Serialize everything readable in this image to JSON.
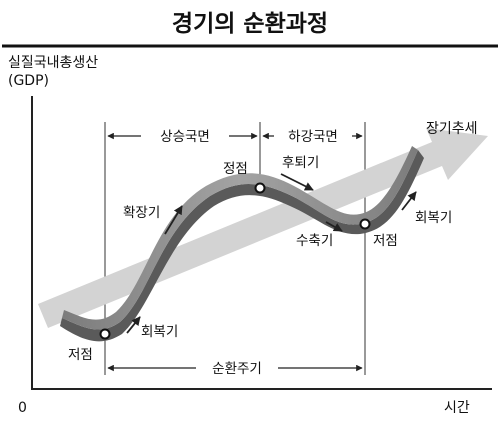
{
  "title": "경기의 순환과정",
  "y_axis_label_line1": "실질국내총생산",
  "y_axis_label_line2": "(GDP)",
  "x_axis_label": "시간",
  "origin_label": "0",
  "trend_label": "장기추세",
  "spans": {
    "expansion_phase": "상승국면",
    "contraction_phase": "하강국면",
    "cycle": "순환주기"
  },
  "points": {
    "peak": "정점",
    "trough_left": "저점",
    "trough_right": "저점"
  },
  "phases": {
    "recovery_left": "회복기",
    "expansion": "확장기",
    "recession": "후퇴기",
    "contraction": "수축기",
    "recovery_right": "회복기"
  },
  "colors": {
    "title_rule": "#111111",
    "trend_fill": "#d3d3d3",
    "curve_fill": "#8f8f8f",
    "curve_shadow": "#5a5a5a",
    "axis": "#222222",
    "guide": "#333333"
  }
}
